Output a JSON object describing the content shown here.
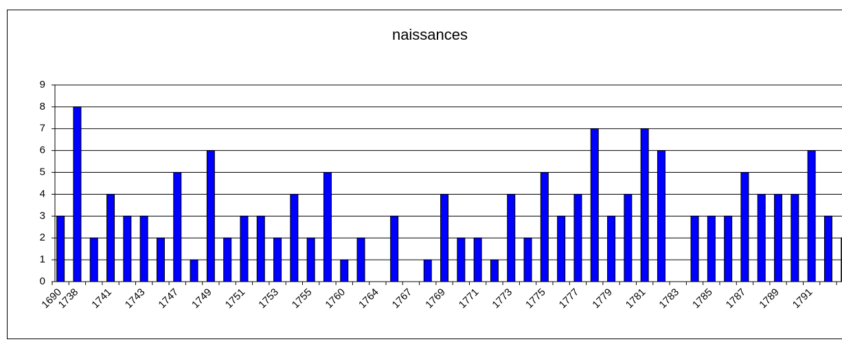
{
  "chart_data": {
    "type": "bar",
    "title": "naissances",
    "categories": [
      "1690",
      "1738",
      null,
      "1741",
      null,
      "1743",
      null,
      "1747",
      null,
      "1749",
      null,
      "1751",
      null,
      "1753",
      null,
      "1755",
      null,
      "1760",
      null,
      "1764",
      null,
      "1767",
      null,
      "1769",
      null,
      "1771",
      null,
      "1773",
      null,
      "1775",
      null,
      "1777",
      null,
      "1779",
      null,
      "1781",
      null,
      "1783",
      null,
      "1785",
      null,
      "1787",
      null,
      "1789",
      null,
      "1791",
      null,
      null
    ],
    "values": [
      3,
      8,
      2,
      4,
      3,
      3,
      2,
      5,
      1,
      6,
      2,
      3,
      3,
      2,
      4,
      2,
      5,
      1,
      2,
      0,
      3,
      0,
      1,
      4,
      2,
      2,
      1,
      4,
      2,
      5,
      3,
      4,
      7,
      3,
      4,
      7,
      6,
      0,
      3,
      3,
      3,
      5,
      4,
      4,
      4,
      6,
      3,
      2
    ],
    "color": "#0000ff",
    "ylim": [
      0,
      9
    ],
    "yticks": [
      0,
      1,
      2,
      3,
      4,
      5,
      6,
      7,
      8,
      9
    ],
    "grid": true
  }
}
